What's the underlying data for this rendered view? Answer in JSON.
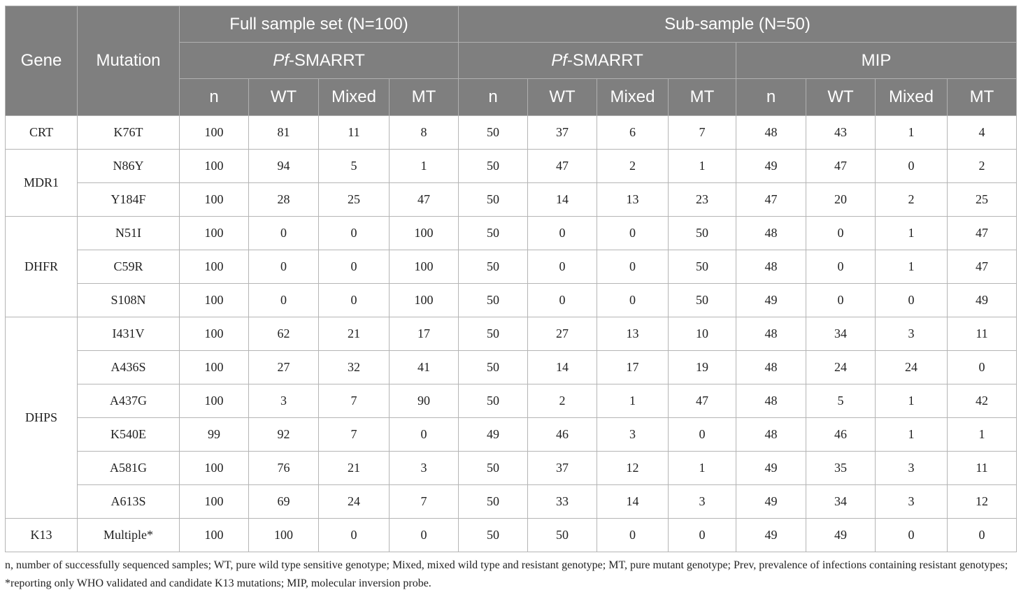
{
  "headers": {
    "gene": "Gene",
    "mutation": "Mutation",
    "full_sample": "Full sample set (N=100)",
    "sub_sample": "Sub-sample (N=50)",
    "pf_prefix": "Pf",
    "pf_suffix": "-SMARRT",
    "mip": "MIP",
    "cols": [
      "n",
      "WT",
      "Mixed",
      "MT",
      "n",
      "WT",
      "Mixed",
      "MT",
      "n",
      "WT",
      "Mixed",
      "MT"
    ]
  },
  "groups": [
    {
      "gene": "CRT",
      "rows": [
        {
          "mutation": "K76T",
          "values": [
            "100",
            "81",
            "11",
            "8",
            "50",
            "37",
            "6",
            "7",
            "48",
            "43",
            "1",
            "4"
          ]
        }
      ]
    },
    {
      "gene": "MDR1",
      "rows": [
        {
          "mutation": "N86Y",
          "values": [
            "100",
            "94",
            "5",
            "1",
            "50",
            "47",
            "2",
            "1",
            "49",
            "47",
            "0",
            "2"
          ]
        },
        {
          "mutation": "Y184F",
          "values": [
            "100",
            "28",
            "25",
            "47",
            "50",
            "14",
            "13",
            "23",
            "47",
            "20",
            "2",
            "25"
          ]
        }
      ]
    },
    {
      "gene": "DHFR",
      "rows": [
        {
          "mutation": "N51I",
          "values": [
            "100",
            "0",
            "0",
            "100",
            "50",
            "0",
            "0",
            "50",
            "48",
            "0",
            "1",
            "47"
          ]
        },
        {
          "mutation": "C59R",
          "values": [
            "100",
            "0",
            "0",
            "100",
            "50",
            "0",
            "0",
            "50",
            "48",
            "0",
            "1",
            "47"
          ]
        },
        {
          "mutation": "S108N",
          "values": [
            "100",
            "0",
            "0",
            "100",
            "50",
            "0",
            "0",
            "50",
            "49",
            "0",
            "0",
            "49"
          ]
        }
      ]
    },
    {
      "gene": "DHPS",
      "rows": [
        {
          "mutation": "I431V",
          "values": [
            "100",
            "62",
            "21",
            "17",
            "50",
            "27",
            "13",
            "10",
            "48",
            "34",
            "3",
            "11"
          ]
        },
        {
          "mutation": "A436S",
          "values": [
            "100",
            "27",
            "32",
            "41",
            "50",
            "14",
            "17",
            "19",
            "48",
            "24",
            "24",
            "0"
          ]
        },
        {
          "mutation": "A437G",
          "values": [
            "100",
            "3",
            "7",
            "90",
            "50",
            "2",
            "1",
            "47",
            "48",
            "5",
            "1",
            "42"
          ]
        },
        {
          "mutation": "K540E",
          "values": [
            "99",
            "92",
            "7",
            "0",
            "49",
            "46",
            "3",
            "0",
            "48",
            "46",
            "1",
            "1"
          ]
        },
        {
          "mutation": "A581G",
          "values": [
            "100",
            "76",
            "21",
            "3",
            "50",
            "37",
            "12",
            "1",
            "49",
            "35",
            "3",
            "11"
          ]
        },
        {
          "mutation": "A613S",
          "values": [
            "100",
            "69",
            "24",
            "7",
            "50",
            "33",
            "14",
            "3",
            "49",
            "34",
            "3",
            "12"
          ]
        }
      ]
    },
    {
      "gene": "K13",
      "rows": [
        {
          "mutation": "Multiple*",
          "values": [
            "100",
            "100",
            "0",
            "0",
            "50",
            "50",
            "0",
            "0",
            "49",
            "49",
            "0",
            "0"
          ]
        }
      ]
    }
  ],
  "footnote": "n, number of successfully sequenced samples; WT, pure wild type sensitive genotype; Mixed, mixed wild type and resistant genotype; MT, pure mutant genotype; Prev, prevalence of infections containing resistant genotypes; *reporting only WHO validated and candidate K13 mutations; MIP, molecular inversion probe."
}
